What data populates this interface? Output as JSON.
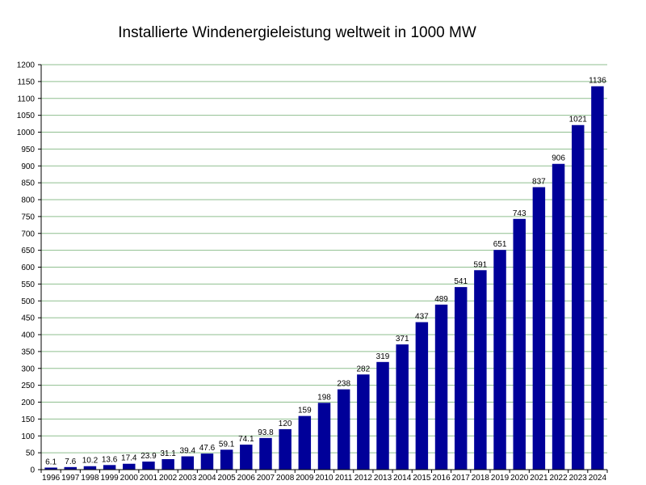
{
  "chart_data": {
    "type": "bar",
    "title": "Installierte Windenergieleistung weltweit in 1000 MW",
    "xlabel": "",
    "ylabel": "",
    "categories": [
      "1996",
      "1997",
      "1998",
      "1999",
      "2000",
      "2001",
      "2002",
      "2003",
      "2004",
      "2005",
      "2006",
      "2007",
      "2008",
      "2009",
      "2010",
      "2011",
      "2012",
      "2013",
      "2014",
      "2015",
      "2016",
      "2017",
      "2018",
      "2019",
      "2020",
      "2021",
      "2022",
      "2023",
      "2024"
    ],
    "values": [
      6.1,
      7.6,
      10.2,
      13.6,
      17.4,
      23.9,
      31.1,
      39.4,
      47.6,
      59.1,
      74.1,
      93.8,
      120,
      159,
      198,
      238,
      282,
      319,
      371,
      437,
      489,
      541,
      591,
      651,
      743,
      837,
      906,
      1021,
      1136
    ],
    "data_labels": [
      "6.1",
      "7.6",
      "10.2",
      "13.6",
      "17.4",
      "23.9",
      "31.1",
      "39.4",
      "47.6",
      "59.1",
      "74.1",
      "93.8",
      "120",
      "159",
      "198",
      "238",
      "282",
      "319",
      "371",
      "437",
      "489",
      "541",
      "591",
      "651",
      "743",
      "837",
      "906",
      "1021",
      "1136"
    ],
    "ylim": [
      0,
      1200
    ],
    "yticks": [
      "0",
      "50",
      "100",
      "150",
      "200",
      "250",
      "300",
      "350",
      "400",
      "450",
      "500",
      "550",
      "600",
      "650",
      "700",
      "750",
      "800",
      "850",
      "900",
      "950",
      "1000",
      "1050",
      "1100",
      "1150",
      "1200"
    ],
    "grid": "horizontal",
    "legend": "none",
    "colors": {
      "bar": "#000099",
      "grid": "#8fbf8f",
      "axis": "#000000"
    }
  }
}
